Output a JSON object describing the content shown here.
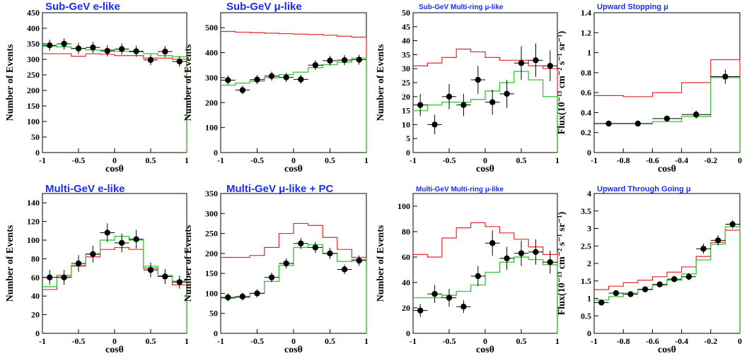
{
  "colors": {
    "data": "#000000",
    "no_oscillation": "#e8262d",
    "best_fit": "#3ec93e",
    "title": "#1a2bff"
  },
  "chart_data": [
    {
      "type": "line",
      "title": "Sub-GeV e-like",
      "xlabel": "cosθ",
      "ylabel": "Number of Events",
      "xlim": [
        -1,
        1
      ],
      "ylim": [
        0,
        450
      ],
      "xticks": [
        -1,
        -0.5,
        0,
        0.5,
        1
      ],
      "xtick_labels": [
        "-1",
        "-0.5",
        "0",
        "0.5",
        "1"
      ],
      "yticks": [
        0,
        50,
        100,
        150,
        200,
        250,
        300,
        350,
        400,
        450
      ],
      "ytick_labels": [
        "0",
        "50",
        "100",
        "150",
        "200",
        "250",
        "300",
        "350",
        "400",
        "450"
      ],
      "bin_edges": [
        -1,
        -0.8,
        -0.6,
        -0.4,
        -0.2,
        0,
        0.2,
        0.4,
        0.6,
        0.8,
        1
      ],
      "no_oscillation": [
        318,
        318,
        310,
        318,
        316,
        312,
        312,
        304,
        304,
        300
      ],
      "best_fit": [
        342,
        340,
        335,
        330,
        330,
        326,
        324,
        318,
        312,
        308
      ],
      "data": {
        "x": [
          -0.9,
          -0.7,
          -0.5,
          -0.3,
          -0.1,
          0.1,
          0.3,
          0.5,
          0.7,
          0.9
        ],
        "y": [
          345,
          350,
          335,
          338,
          327,
          333,
          326,
          298,
          325,
          293
        ],
        "yerr": [
          18,
          18,
          18,
          18,
          18,
          18,
          18,
          17,
          18,
          17
        ]
      },
      "grid": false
    },
    {
      "type": "line",
      "title": "Sub-GeV μ-like",
      "xlabel": "cosθ",
      "ylabel": "Number of Events",
      "xlim": [
        -1,
        1
      ],
      "ylim": [
        0,
        560
      ],
      "xticks": [
        -1,
        -0.5,
        0,
        0.5,
        1
      ],
      "xtick_labels": [
        "-1",
        "-0.5",
        "0",
        "0.5",
        "1"
      ],
      "yticks": [
        0,
        100,
        200,
        300,
        400,
        500
      ],
      "ytick_labels": [
        "0",
        "100",
        "200",
        "300",
        "400",
        "500"
      ],
      "bin_edges": [
        -1,
        -0.8,
        -0.6,
        -0.4,
        -0.2,
        0,
        0.2,
        0.4,
        0.6,
        0.8,
        1
      ],
      "no_oscillation": [
        485,
        482,
        480,
        478,
        476,
        474,
        473,
        470,
        466,
        462
      ],
      "best_fit": [
        270,
        278,
        286,
        300,
        312,
        322,
        340,
        352,
        362,
        378
      ],
      "data": {
        "x": [
          -0.9,
          -0.7,
          -0.5,
          -0.3,
          -0.1,
          0.1,
          0.3,
          0.5,
          0.7,
          0.9
        ],
        "y": [
          290,
          250,
          292,
          306,
          301,
          293,
          350,
          368,
          370,
          372
        ],
        "yerr": [
          18,
          17,
          18,
          18,
          18,
          18,
          19,
          20,
          20,
          20
        ]
      },
      "grid": false
    },
    {
      "type": "line",
      "title": "Sub-GeV Multi-ring μ-like",
      "xlabel": "cosθ",
      "ylabel": "Number of Events",
      "xlim": [
        -1,
        1
      ],
      "ylim": [
        0,
        50
      ],
      "xticks": [
        -1,
        -0.5,
        0,
        0.5,
        1
      ],
      "xtick_labels": [
        "-1",
        "-0.5",
        "0",
        "0.5",
        "1"
      ],
      "yticks": [
        0,
        5,
        10,
        15,
        20,
        25,
        30,
        35,
        40,
        45,
        50
      ],
      "ytick_labels": [
        "0",
        "5",
        "10",
        "15",
        "20",
        "25",
        "30",
        "35",
        "40",
        "45",
        "50"
      ],
      "bin_edges": [
        -1,
        -0.8,
        -0.6,
        -0.4,
        -0.2,
        0,
        0.2,
        0.4,
        0.6,
        0.8,
        1
      ],
      "no_oscillation": [
        31,
        32,
        34,
        37,
        36,
        34,
        33,
        33,
        31,
        30
      ],
      "best_fit": [
        15,
        17,
        18,
        18,
        19,
        22,
        25,
        29,
        26,
        20
      ],
      "data": {
        "x": [
          -0.9,
          -0.7,
          -0.5,
          -0.3,
          -0.1,
          0.1,
          0.3,
          0.5,
          0.7,
          0.9
        ],
        "y": [
          17,
          10,
          20,
          17,
          26,
          18,
          21,
          32,
          33,
          31
        ],
        "yerr": [
          4,
          3.5,
          4.5,
          4,
          5,
          4.5,
          5,
          6,
          6,
          5.5
        ]
      },
      "grid": false
    },
    {
      "type": "line",
      "title": "Upward Stopping μ",
      "xlabel": "cosθ",
      "ylabel": "Flux(10⁻¹³ cm⁻² s⁻¹ sr⁻¹)",
      "xlim": [
        -1,
        0
      ],
      "ylim": [
        0,
        1.4
      ],
      "xticks": [
        -1,
        -0.8,
        -0.6,
        -0.4,
        -0.2,
        0
      ],
      "xtick_labels": [
        "-1",
        "-0.8",
        "-0.6",
        "-0.4",
        "-0.2",
        "0"
      ],
      "yticks": [
        0,
        0.2,
        0.4,
        0.6,
        0.8,
        1,
        1.2,
        1.4
      ],
      "ytick_labels": [
        "0",
        "0.2",
        "0.4",
        "0.6",
        "0.8",
        "1",
        "1.2",
        "1.4"
      ],
      "bin_edges": [
        -1,
        -0.8,
        -0.6,
        -0.4,
        -0.2,
        0
      ],
      "no_oscillation": [
        0.57,
        0.56,
        0.6,
        0.7,
        0.93
      ],
      "best_fit": [
        0.29,
        0.29,
        0.31,
        0.36,
        0.75
      ],
      "data": {
        "x": [
          -0.9,
          -0.7,
          -0.5,
          -0.3,
          -0.1
        ],
        "y": [
          0.29,
          0.29,
          0.34,
          0.38,
          0.76
        ],
        "yerr": [
          0.03,
          0.03,
          0.03,
          0.04,
          0.07
        ]
      },
      "grid": false
    },
    {
      "type": "line",
      "title": "Multi-GeV e-like",
      "xlabel": "cosθ",
      "ylabel": "Number of Events",
      "xlim": [
        -1,
        1
      ],
      "ylim": [
        0,
        150
      ],
      "xticks": [
        -1,
        -0.5,
        0,
        0.5,
        1
      ],
      "xtick_labels": [
        "-1",
        "-0.5",
        "0",
        "0.5",
        "1"
      ],
      "yticks": [
        0,
        20,
        40,
        60,
        80,
        100,
        120,
        140
      ],
      "ytick_labels": [
        "0",
        "20",
        "40",
        "60",
        "80",
        "100",
        "120",
        "140"
      ],
      "bin_edges": [
        -1,
        -0.8,
        -0.6,
        -0.4,
        -0.2,
        0,
        0.2,
        0.4,
        0.6,
        0.8,
        1
      ],
      "no_oscillation": [
        47,
        62,
        72,
        82,
        90,
        92,
        90,
        70,
        62,
        52
      ],
      "best_fit": [
        50,
        60,
        73,
        85,
        100,
        104,
        100,
        72,
        62,
        56
      ],
      "data": {
        "x": [
          -0.9,
          -0.7,
          -0.5,
          -0.3,
          -0.1,
          0.1,
          0.3,
          0.5,
          0.7,
          0.9
        ],
        "y": [
          60,
          60,
          75,
          85,
          108,
          97,
          101,
          68,
          61,
          55
        ],
        "yerr": [
          8,
          8,
          9,
          9,
          10,
          10,
          10,
          8,
          8,
          7
        ]
      },
      "grid": false
    },
    {
      "type": "line",
      "title": "Multi-GeV μ-like + PC",
      "xlabel": "cosθ",
      "ylabel": "Number of Events",
      "xlim": [
        -1,
        1
      ],
      "ylim": [
        0,
        350
      ],
      "xticks": [
        -1,
        -0.5,
        0,
        0.5,
        1
      ],
      "xtick_labels": [
        "-1",
        "-0.5",
        "0",
        "0.5",
        "1"
      ],
      "yticks": [
        0,
        50,
        100,
        150,
        200,
        250,
        300,
        350
      ],
      "ytick_labels": [
        "0",
        "50",
        "100",
        "150",
        "200",
        "250",
        "300",
        "350"
      ],
      "bin_edges": [
        -1,
        -0.8,
        -0.6,
        -0.4,
        -0.2,
        0,
        0.2,
        0.4,
        0.6,
        0.8,
        1
      ],
      "no_oscillation": [
        190,
        190,
        195,
        215,
        250,
        275,
        270,
        240,
        210,
        190
      ],
      "best_fit": [
        88,
        90,
        100,
        130,
        170,
        215,
        222,
        200,
        180,
        185
      ],
      "data": {
        "x": [
          -0.9,
          -0.7,
          -0.5,
          -0.3,
          -0.1,
          0.1,
          0.3,
          0.5,
          0.7,
          0.9
        ],
        "y": [
          90,
          92,
          100,
          140,
          175,
          225,
          215,
          200,
          160,
          182
        ],
        "yerr": [
          10,
          10,
          10,
          12,
          13,
          14,
          14,
          14,
          12,
          13
        ]
      },
      "grid": false
    },
    {
      "type": "line",
      "title": "Multi-GeV Multi-ring μ-like",
      "xlabel": "cosθ",
      "ylabel": "Number of Events",
      "xlim": [
        -1,
        1
      ],
      "ylim": [
        0,
        110
      ],
      "xticks": [
        -1,
        -0.5,
        0,
        0.5,
        1
      ],
      "xtick_labels": [
        "-1",
        "-0.5",
        "0",
        "0.5",
        "1"
      ],
      "yticks": [
        0,
        20,
        40,
        60,
        80,
        100
      ],
      "ytick_labels": [
        "0",
        "20",
        "40",
        "60",
        "80",
        "100"
      ],
      "bin_edges": [
        -1,
        -0.8,
        -0.6,
        -0.4,
        -0.2,
        0,
        0.2,
        0.4,
        0.6,
        0.8,
        1
      ],
      "no_oscillation": [
        62,
        60,
        75,
        83,
        87,
        84,
        79,
        74,
        68,
        62
      ],
      "best_fit": [
        28,
        28,
        30,
        33,
        38,
        48,
        56,
        60,
        58,
        54
      ],
      "data": {
        "x": [
          -0.9,
          -0.7,
          -0.5,
          -0.3,
          -0.1,
          0.1,
          0.3,
          0.5,
          0.7,
          0.9
        ],
        "y": [
          18,
          31,
          28,
          21,
          45,
          71,
          59,
          63,
          64,
          56
        ],
        "yerr": [
          5,
          7,
          7,
          5,
          8,
          10,
          9,
          10,
          10,
          9
        ]
      },
      "grid": false
    },
    {
      "type": "line",
      "title": "Upward Through Going μ",
      "xlabel": "cosθ",
      "ylabel": "Flux(10⁻¹³ cm⁻² s⁻¹ sr⁻¹)",
      "xlim": [
        -1,
        0
      ],
      "ylim": [
        0,
        4
      ],
      "xticks": [
        -1,
        -0.8,
        -0.6,
        -0.4,
        -0.2,
        0
      ],
      "xtick_labels": [
        "-1",
        "-0.8",
        "-0.6",
        "-0.4",
        "-0.2",
        "0"
      ],
      "yticks": [
        0,
        0.5,
        1,
        1.5,
        2,
        2.5,
        3,
        3.5,
        4
      ],
      "ytick_labels": [
        "0",
        "0.5",
        "1",
        "1.5",
        "2",
        "2.5",
        "3",
        "3.5",
        "4"
      ],
      "bin_edges": [
        -1,
        -0.9,
        -0.8,
        -0.7,
        -0.6,
        -0.5,
        -0.4,
        -0.3,
        -0.2,
        -0.1,
        0
      ],
      "no_oscillation": [
        1.25,
        1.35,
        1.45,
        1.52,
        1.62,
        1.75,
        1.9,
        2.2,
        2.6,
        2.95
      ],
      "best_fit": [
        0.95,
        1.05,
        1.15,
        1.25,
        1.38,
        1.52,
        1.7,
        2.1,
        2.55,
        3.05
      ],
      "data": {
        "x": [
          -0.95,
          -0.85,
          -0.75,
          -0.65,
          -0.55,
          -0.45,
          -0.35,
          -0.25,
          -0.15,
          -0.05
        ],
        "y": [
          0.88,
          1.15,
          1.12,
          1.26,
          1.4,
          1.55,
          1.62,
          2.42,
          2.66,
          3.12
        ],
        "yerr": [
          0.08,
          0.08,
          0.08,
          0.08,
          0.09,
          0.09,
          0.1,
          0.14,
          0.15,
          0.12
        ]
      },
      "grid": false
    }
  ]
}
